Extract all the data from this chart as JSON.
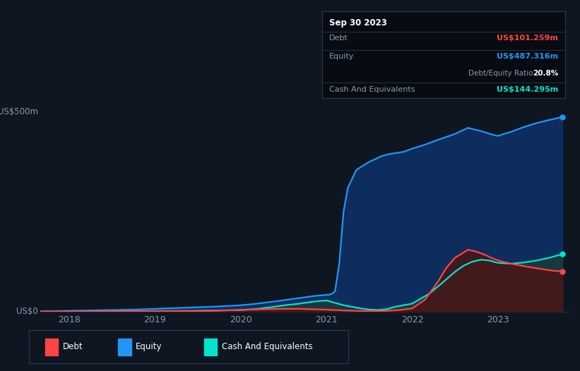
{
  "background_color": "#0e1621",
  "plot_bg_color": "#0e1621",
  "grid_color": "#1e3050",
  "title_box": {
    "date": "Sep 30 2023",
    "debt_label": "Debt",
    "debt_value": "US$101.259m",
    "debt_color": "#ff4444",
    "equity_label": "Equity",
    "equity_value": "US$487.316m",
    "equity_color": "#2196f3",
    "ratio_value": "20.8%",
    "ratio_label": "Debt/Equity Ratio",
    "cash_label": "Cash And Equivalents",
    "cash_value": "US$144.295m",
    "cash_color": "#00e5cc",
    "box_facecolor": "#080c12",
    "border_color": "#2a3a50"
  },
  "y_label_top": "US$500m",
  "y_label_bottom": "US$0",
  "x_ticks": [
    "2018",
    "2019",
    "2020",
    "2021",
    "2022",
    "2023"
  ],
  "x_tick_positions": [
    2018,
    2019,
    2020,
    2021,
    2022,
    2023
  ],
  "equity_x": [
    2017.67,
    2017.75,
    2018.0,
    2018.25,
    2018.5,
    2018.75,
    2019.0,
    2019.25,
    2019.5,
    2019.75,
    2020.0,
    2020.15,
    2020.3,
    2020.45,
    2020.55,
    2020.65,
    2020.75,
    2020.85,
    2020.95,
    2021.0,
    2021.05,
    2021.1,
    2021.15,
    2021.2,
    2021.25,
    2021.35,
    2021.5,
    2021.65,
    2021.75,
    2021.9,
    2022.0,
    2022.15,
    2022.3,
    2022.5,
    2022.65,
    2022.8,
    2022.95,
    2023.0,
    2023.15,
    2023.3,
    2023.45,
    2023.6,
    2023.75
  ],
  "equity_y": [
    1,
    1,
    2,
    3,
    4,
    5,
    7,
    9,
    11,
    13,
    16,
    19,
    23,
    27,
    30,
    33,
    36,
    39,
    41,
    42,
    43,
    50,
    120,
    250,
    310,
    355,
    375,
    390,
    395,
    400,
    408,
    418,
    430,
    445,
    460,
    452,
    442,
    440,
    450,
    462,
    472,
    480,
    487
  ],
  "debt_x": [
    2017.67,
    2018.0,
    2018.5,
    2019.0,
    2019.5,
    2020.0,
    2020.25,
    2020.5,
    2020.7,
    2020.85,
    2021.0,
    2021.1,
    2021.2,
    2021.35,
    2021.5,
    2021.7,
    2021.85,
    2022.0,
    2022.15,
    2022.3,
    2022.4,
    2022.5,
    2022.6,
    2022.65,
    2022.75,
    2022.85,
    2022.95,
    2023.05,
    2023.2,
    2023.35,
    2023.5,
    2023.65,
    2023.75
  ],
  "debt_y": [
    0,
    0,
    0.5,
    1,
    1.5,
    4,
    6,
    7,
    7,
    6,
    5,
    4,
    3,
    2,
    1,
    2,
    4,
    8,
    30,
    75,
    110,
    135,
    148,
    155,
    150,
    142,
    132,
    125,
    118,
    112,
    107,
    102,
    101
  ],
  "cash_x": [
    2017.67,
    2018.0,
    2018.5,
    2019.0,
    2019.5,
    2020.0,
    2020.2,
    2020.35,
    2020.45,
    2020.55,
    2020.65,
    2020.75,
    2020.85,
    2020.95,
    2021.0,
    2021.1,
    2021.2,
    2021.3,
    2021.4,
    2021.5,
    2021.6,
    2021.7,
    2021.8,
    2022.0,
    2022.2,
    2022.35,
    2022.5,
    2022.6,
    2022.7,
    2022.8,
    2022.9,
    2023.0,
    2023.15,
    2023.3,
    2023.45,
    2023.6,
    2023.75
  ],
  "cash_y": [
    0,
    0,
    0.5,
    1.5,
    2,
    4,
    7,
    11,
    14,
    17,
    19,
    22,
    25,
    27,
    28,
    22,
    16,
    12,
    8,
    5,
    4,
    6,
    12,
    20,
    45,
    72,
    100,
    115,
    125,
    130,
    128,
    122,
    120,
    123,
    128,
    135,
    144
  ],
  "equity_line_color": "#2196f3",
  "equity_fill_color": "#0d2d5e",
  "debt_line_color": "#ff4444",
  "debt_fill_color": "#4a1515",
  "cash_fill_color": "#1a3a38",
  "cash_line_color": "#00e5cc",
  "legend_items": [
    {
      "label": "Debt",
      "color": "#ff4444"
    },
    {
      "label": "Equity",
      "color": "#2196f3"
    },
    {
      "label": "Cash And Equivalents",
      "color": "#00e5cc"
    }
  ],
  "ylim": [
    0,
    520
  ],
  "xlim": [
    2017.67,
    2023.82
  ],
  "dot_color_equity": "#2196f3",
  "dot_color_debt": "#ff4444",
  "dot_color_cash": "#00e5cc"
}
